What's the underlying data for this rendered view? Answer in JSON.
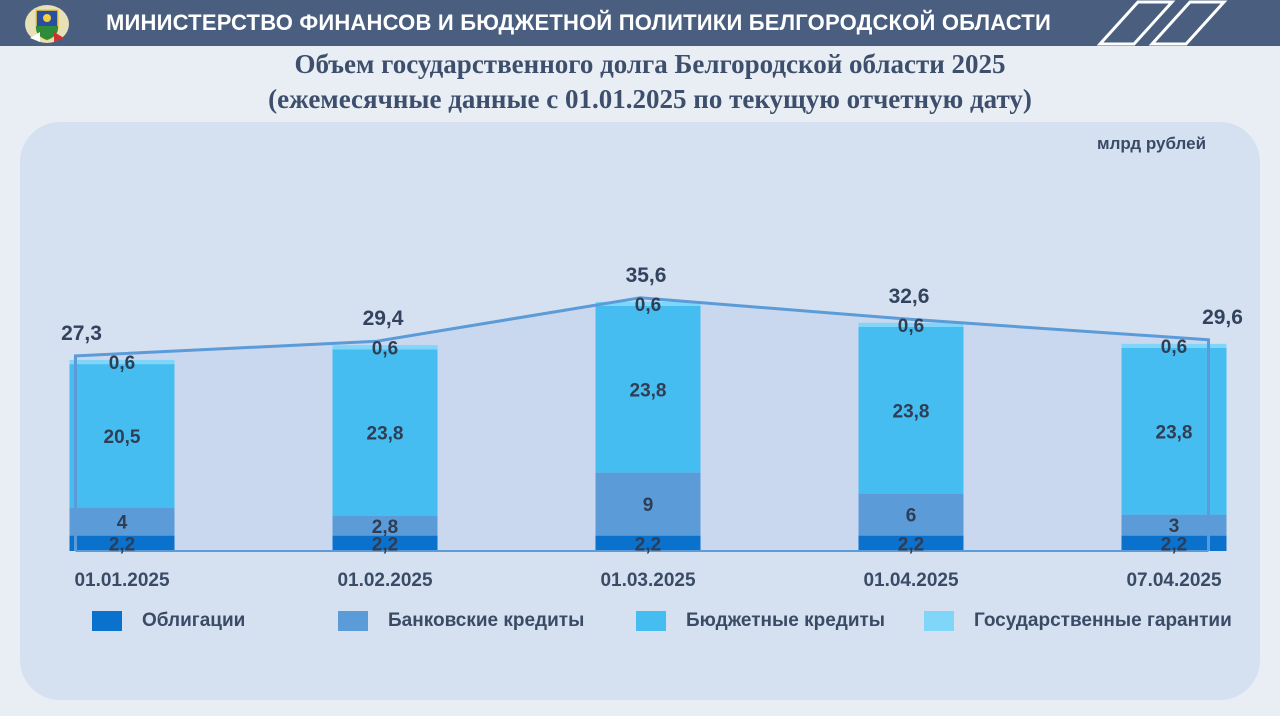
{
  "header": {
    "title": "МИНИСТЕРСТВО ФИНАНСОВ И БЮДЖЕТНОЙ ПОЛИТИКИ БЕЛГОРОДСКОЙ ОБЛАСТИ",
    "logo_icon": "coat-of-arms-icon",
    "background": "#4a5f7f"
  },
  "chart_data": {
    "type": "bar",
    "stacked": true,
    "title": "Объем государственного долга Белгородской области 2025",
    "subtitle": "(ежемесячные данные с 01.01.2025 по текущую отчетную дату)",
    "unit": "млрд рублей",
    "categories": [
      "01.01.2025",
      "01.02.2025",
      "01.03.2025",
      "01.04.2025",
      "07.04.2025"
    ],
    "totals": [
      27.3,
      29.4,
      35.6,
      32.6,
      29.6
    ],
    "totals_labels": [
      "27,3",
      "29,4",
      "35,6",
      "32,6",
      "29,6"
    ],
    "series": [
      {
        "name": "Облигации",
        "values": [
          2.2,
          2.2,
          2.2,
          2.2,
          2.2
        ],
        "labels": [
          "2,2",
          "2,2",
          "2,2",
          "2,2",
          "2,2"
        ],
        "color": "#0a71cc"
      },
      {
        "name": "Банковские кредиты",
        "values": [
          4,
          2.8,
          9,
          6,
          3
        ],
        "labels": [
          "4",
          "2,8",
          "9",
          "6",
          "3"
        ],
        "color": "#5b9bd8"
      },
      {
        "name": "Бюджетные кредиты",
        "values": [
          20.5,
          23.8,
          23.8,
          23.8,
          23.8
        ],
        "labels": [
          "20,5",
          "23,8",
          "23,8",
          "23,8",
          "23,8"
        ],
        "color": "#45bdf0"
      },
      {
        "name": "Государственные гарантии",
        "values": [
          0.6,
          0.6,
          0.6,
          0.6,
          0.6
        ],
        "labels": [
          "0,6",
          "0,6",
          "0,6",
          "0,6",
          "0,6"
        ],
        "color": "#7fd6f8"
      }
    ],
    "total_line_color": "#5b9bd8",
    "area_fill": "#c9d8ef",
    "legend_position": "bottom",
    "grid": false
  }
}
